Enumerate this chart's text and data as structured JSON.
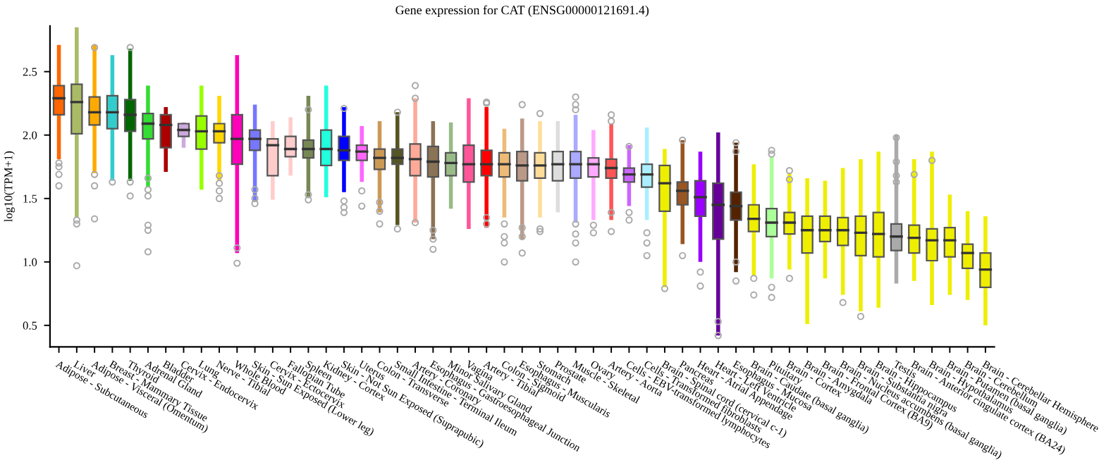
{
  "chart_data": {
    "type": "box",
    "title": "Gene expression for CAT (ENSG00000121691.4)",
    "ylabel": "log10(TPM+1)",
    "categories": [
      "Adipose - Subcutaneous",
      "Liver",
      "Adipose - Visceral (Omentum)",
      "Breast - Mammary Tissue",
      "Thyroid",
      "Adrenal Gland",
      "Bladder",
      "Cervix - Endocervix",
      "Lung",
      "Nerve - Tibial",
      "Whole Blood",
      "Skin - Sun Exposed (Lower leg)",
      "Cervix - Ectocervix",
      "Fallopian Tube",
      "Spleen",
      "Kidney - Cortex",
      "Skin - Not Sun Exposed (Suprapubic)",
      "Uterus",
      "Colon - Transverse",
      "Small Intestine - Terminal Ileum",
      "Artery - Coronary",
      "Esophagus - Gastroesophageal Junction",
      "Minor Salivary Gland",
      "Vagina",
      "Artery - Tibial",
      "Colon - Sigmoid",
      "Esophagus - Muscularis",
      "Stomach",
      "Prostate",
      "Muscle - Skeletal",
      "Ovary",
      "Artery - Aorta",
      "Cells - EBV-transformed lymphocytes",
      "Cells - Transformed fibroblasts",
      "Brain - Spinal cord (cervical c-1)",
      "Pancreas",
      "Heart - Atrial Appendage",
      "Heart - Left Ventricle",
      "Esophagus - Mucosa",
      "Brain - Caudate (basal ganglia)",
      "Pituitary",
      "Brain - Cortex",
      "Brain - Amygdala",
      "Brain - Frontal Cortex (BA9)",
      "Brain - Nucleus accumbens (basal ganglia)",
      "Brain - Substantia nigra",
      "Brain - Hippocampus",
      "Testis",
      "Brain - Anterior cingulate cortex (BA24)",
      "Brain - Hypothalamus",
      "Brain - Putamen (basal ganglia)",
      "Brain - Cerebellum",
      "Brain - Cerebellar Hemisphere"
    ],
    "colors": [
      "#ff6600",
      "#aabb66",
      "#ffaa00",
      "#33cccc",
      "#006600",
      "#33dd33",
      "#aa0000",
      "#ccaadd",
      "#99ff00",
      "#ffd700",
      "#ff00bb",
      "#7777ff",
      "#ffcccc",
      "#ffcccc",
      "#778855",
      "#22ffdd",
      "#0000ff",
      "#ff66ff",
      "#cc9955",
      "#555522",
      "#ffaa99",
      "#8b7355",
      "#99bb88",
      "#ff5599",
      "#ff0000",
      "#eebb77",
      "#bb9988",
      "#ffdd99",
      "#dddddd",
      "#aaaaff",
      "#ffaaff",
      "#ff5555",
      "#cc66ff",
      "#aaeeff",
      "#eeee00",
      "#995522",
      "#9900ff",
      "#660099",
      "#552200",
      "#eeee00",
      "#aaff99",
      "#eeee00",
      "#eeee00",
      "#eeee00",
      "#eeee00",
      "#eeee00",
      "#eeee00",
      "#aaaaaa",
      "#eeee00",
      "#eeee00",
      "#eeee00",
      "#eeee00",
      "#eeee00"
    ],
    "boxes": [
      {
        "low": 1.81,
        "q1": 2.16,
        "median": 2.29,
        "q3": 2.39,
        "high": 2.71,
        "outliers": [
          1.78,
          1.75,
          1.69,
          1.6
        ]
      },
      {
        "low": 1.35,
        "q1": 2.01,
        "median": 2.26,
        "q3": 2.4,
        "high": 2.85,
        "outliers": [
          1.33,
          1.3,
          0.97
        ]
      },
      {
        "low": 1.7,
        "q1": 2.08,
        "median": 2.18,
        "q3": 2.3,
        "high": 2.71,
        "outliers": [
          2.69,
          1.69,
          1.6,
          1.34
        ]
      },
      {
        "low": 1.64,
        "q1": 2.05,
        "median": 2.18,
        "q3": 2.31,
        "high": 2.63,
        "outliers": [
          1.63
        ]
      },
      {
        "low": 1.64,
        "q1": 2.03,
        "median": 2.16,
        "q3": 2.28,
        "high": 2.68,
        "outliers": [
          2.69,
          1.63,
          1.52
        ]
      },
      {
        "low": 1.59,
        "q1": 1.97,
        "median": 2.09,
        "q3": 2.17,
        "high": 2.39,
        "outliers": [
          1.66,
          1.57,
          1.52,
          1.29,
          1.25,
          1.08
        ]
      },
      {
        "low": 1.71,
        "q1": 1.9,
        "median": 2.08,
        "q3": 2.16,
        "high": 2.22
      },
      {
        "low": 1.9,
        "q1": 1.99,
        "median": 2.04,
        "q3": 2.09,
        "high": 2.1
      },
      {
        "low": 1.57,
        "q1": 1.89,
        "median": 2.03,
        "q3": 2.15,
        "high": 2.39
      },
      {
        "low": 1.64,
        "q1": 1.94,
        "median": 2.03,
        "q3": 2.09,
        "high": 2.31,
        "outliers": [
          1.68,
          1.62,
          1.56,
          1.5
        ]
      },
      {
        "low": 1.07,
        "q1": 1.77,
        "median": 1.97,
        "q3": 2.16,
        "high": 2.63,
        "outliers": [
          1.11,
          0.99
        ]
      },
      {
        "low": 1.48,
        "q1": 1.88,
        "median": 1.97,
        "q3": 2.04,
        "high": 2.24,
        "outliers": [
          1.57,
          1.5,
          1.46
        ]
      },
      {
        "low": 1.49,
        "q1": 1.68,
        "median": 1.92,
        "q3": 1.97,
        "high": 2.11
      },
      {
        "low": 1.68,
        "q1": 1.83,
        "median": 1.89,
        "q3": 1.99,
        "high": 2.14
      },
      {
        "low": 1.51,
        "q1": 1.82,
        "median": 1.89,
        "q3": 1.96,
        "high": 2.31,
        "outliers": [
          2.2,
          1.53,
          1.49
        ]
      },
      {
        "low": 1.51,
        "q1": 1.76,
        "median": 1.89,
        "q3": 2.04,
        "high": 2.39
      },
      {
        "low": 1.55,
        "q1": 1.8,
        "median": 1.88,
        "q3": 1.99,
        "high": 2.22,
        "outliers": [
          2.21,
          1.48,
          1.43,
          1.39
        ]
      },
      {
        "low": 1.63,
        "q1": 1.8,
        "median": 1.87,
        "q3": 1.92,
        "high": 2.07,
        "outliers": [
          1.56,
          1.44
        ]
      },
      {
        "low": 1.39,
        "q1": 1.73,
        "median": 1.82,
        "q3": 1.89,
        "high": 2.11,
        "outliers": [
          1.47,
          1.4,
          1.3
        ]
      },
      {
        "low": 1.29,
        "q1": 1.77,
        "median": 1.82,
        "q3": 1.89,
        "high": 2.18,
        "outliers": [
          2.18,
          1.26
        ]
      },
      {
        "low": 1.31,
        "q1": 1.68,
        "median": 1.81,
        "q3": 1.93,
        "high": 2.29,
        "outliers": [
          2.39,
          2.29,
          1.31
        ]
      },
      {
        "low": 1.18,
        "q1": 1.67,
        "median": 1.79,
        "q3": 1.91,
        "high": 2.11,
        "outliers": [
          1.25,
          1.18,
          1.1
        ]
      },
      {
        "low": 1.42,
        "q1": 1.68,
        "median": 1.78,
        "q3": 1.86,
        "high": 2.1
      },
      {
        "low": 1.26,
        "q1": 1.63,
        "median": 1.77,
        "q3": 1.92,
        "high": 2.29
      },
      {
        "low": 1.27,
        "q1": 1.68,
        "median": 1.77,
        "q3": 1.88,
        "high": 2.22,
        "outliers": [
          2.26,
          2.25,
          1.35,
          1.3
        ]
      },
      {
        "low": 1.35,
        "q1": 1.67,
        "median": 1.77,
        "q3": 1.86,
        "high": 2.05,
        "outliers": [
          1.3,
          1.2,
          1.15,
          1.0
        ]
      },
      {
        "low": 1.18,
        "q1": 1.64,
        "median": 1.76,
        "q3": 1.87,
        "high": 2.13,
        "outliers": [
          2.24,
          1.27,
          1.2,
          1.07
        ]
      },
      {
        "low": 1.35,
        "q1": 1.66,
        "median": 1.76,
        "q3": 1.86,
        "high": 2.11,
        "outliers": [
          2.17,
          1.26,
          1.24
        ]
      },
      {
        "low": 1.39,
        "q1": 1.64,
        "median": 1.77,
        "q3": 1.87,
        "high": 2.11
      },
      {
        "low": 1.31,
        "q1": 1.66,
        "median": 1.77,
        "q3": 1.87,
        "high": 2.16,
        "outliers": [
          2.3,
          2.24,
          2.2,
          1.3,
          1.22,
          1.15,
          1.0
        ]
      },
      {
        "low": 1.33,
        "q1": 1.67,
        "median": 1.77,
        "q3": 1.82,
        "high": 2.04,
        "outliers": [
          1.29,
          1.23
        ]
      },
      {
        "low": 1.33,
        "q1": 1.66,
        "median": 1.74,
        "q3": 1.81,
        "high": 2.09,
        "outliers": [
          2.16,
          2.11,
          1.39,
          1.24
        ]
      },
      {
        "low": 1.44,
        "q1": 1.63,
        "median": 1.69,
        "q3": 1.74,
        "high": 1.92,
        "outliers": [
          1.91,
          1.39,
          1.33
        ]
      },
      {
        "low": 1.33,
        "q1": 1.59,
        "median": 1.69,
        "q3": 1.77,
        "high": 2.06,
        "outliers": [
          1.23,
          1.15,
          1.05
        ]
      },
      {
        "low": 0.8,
        "q1": 1.4,
        "median": 1.62,
        "q3": 1.76,
        "high": 1.89,
        "outliers": [
          0.79
        ]
      },
      {
        "low": 1.14,
        "q1": 1.45,
        "median": 1.56,
        "q3": 1.63,
        "high": 1.96,
        "outliers": [
          1.96,
          1.05
        ]
      },
      {
        "low": 1.0,
        "q1": 1.36,
        "median": 1.51,
        "q3": 1.64,
        "high": 1.87,
        "outliers": [
          0.92,
          0.81
        ]
      },
      {
        "low": 0.42,
        "q1": 1.18,
        "median": 1.45,
        "q3": 1.62,
        "high": 2.02,
        "outliers": [
          0.53,
          0.42
        ]
      },
      {
        "low": 0.92,
        "q1": 1.33,
        "median": 1.44,
        "q3": 1.55,
        "high": 1.94,
        "outliers": [
          1.94,
          1.87,
          1.0,
          0.85
        ]
      },
      {
        "low": 0.89,
        "q1": 1.24,
        "median": 1.34,
        "q3": 1.45,
        "high": 1.77,
        "outliers": [
          0.87,
          0.74
        ]
      },
      {
        "low": 0.87,
        "q1": 1.2,
        "median": 1.31,
        "q3": 1.42,
        "high": 1.83,
        "outliers": [
          1.88,
          1.85,
          0.8,
          0.72
        ]
      },
      {
        "low": 0.94,
        "q1": 1.22,
        "median": 1.31,
        "q3": 1.39,
        "high": 1.7,
        "outliers": [
          1.72,
          1.65,
          0.87
        ]
      },
      {
        "low": 0.51,
        "q1": 1.07,
        "median": 1.25,
        "q3": 1.36,
        "high": 1.66
      },
      {
        "low": 0.87,
        "q1": 1.16,
        "median": 1.25,
        "q3": 1.36,
        "high": 1.64
      },
      {
        "low": 0.74,
        "q1": 1.13,
        "median": 1.25,
        "q3": 1.35,
        "high": 1.74,
        "outliers": [
          0.68
        ]
      },
      {
        "low": 0.61,
        "q1": 1.05,
        "median": 1.23,
        "q3": 1.36,
        "high": 1.81,
        "outliers": [
          0.57
        ]
      },
      {
        "low": 0.64,
        "q1": 1.04,
        "median": 1.22,
        "q3": 1.39,
        "high": 1.87
      },
      {
        "low": 0.83,
        "q1": 1.09,
        "median": 1.2,
        "q3": 1.3,
        "high": 2.0,
        "outliers": [
          1.98,
          1.79,
          1.68,
          1.63
        ]
      },
      {
        "low": 0.85,
        "q1": 1.07,
        "median": 1.19,
        "q3": 1.29,
        "high": 1.81,
        "outliers": [
          1.69
        ]
      },
      {
        "low": 0.66,
        "q1": 1.01,
        "median": 1.17,
        "q3": 1.26,
        "high": 1.87,
        "outliers": [
          1.8
        ]
      },
      {
        "low": 0.74,
        "q1": 1.04,
        "median": 1.17,
        "q3": 1.27,
        "high": 1.53
      },
      {
        "low": 0.7,
        "q1": 0.95,
        "median": 1.07,
        "q3": 1.14,
        "high": 1.4
      },
      {
        "low": 0.5,
        "q1": 0.8,
        "median": 0.94,
        "q3": 1.07,
        "high": 1.36
      }
    ],
    "ylim": [
      0.33,
      2.86
    ],
    "yticks": [
      {
        "value": 0.5,
        "label": "0.5"
      },
      {
        "value": 1.0,
        "label": "1.0"
      },
      {
        "value": 1.5,
        "label": "1.5"
      },
      {
        "value": 2.0,
        "label": "2.0"
      },
      {
        "value": 2.5,
        "label": "2.5"
      }
    ],
    "grid": false
  }
}
